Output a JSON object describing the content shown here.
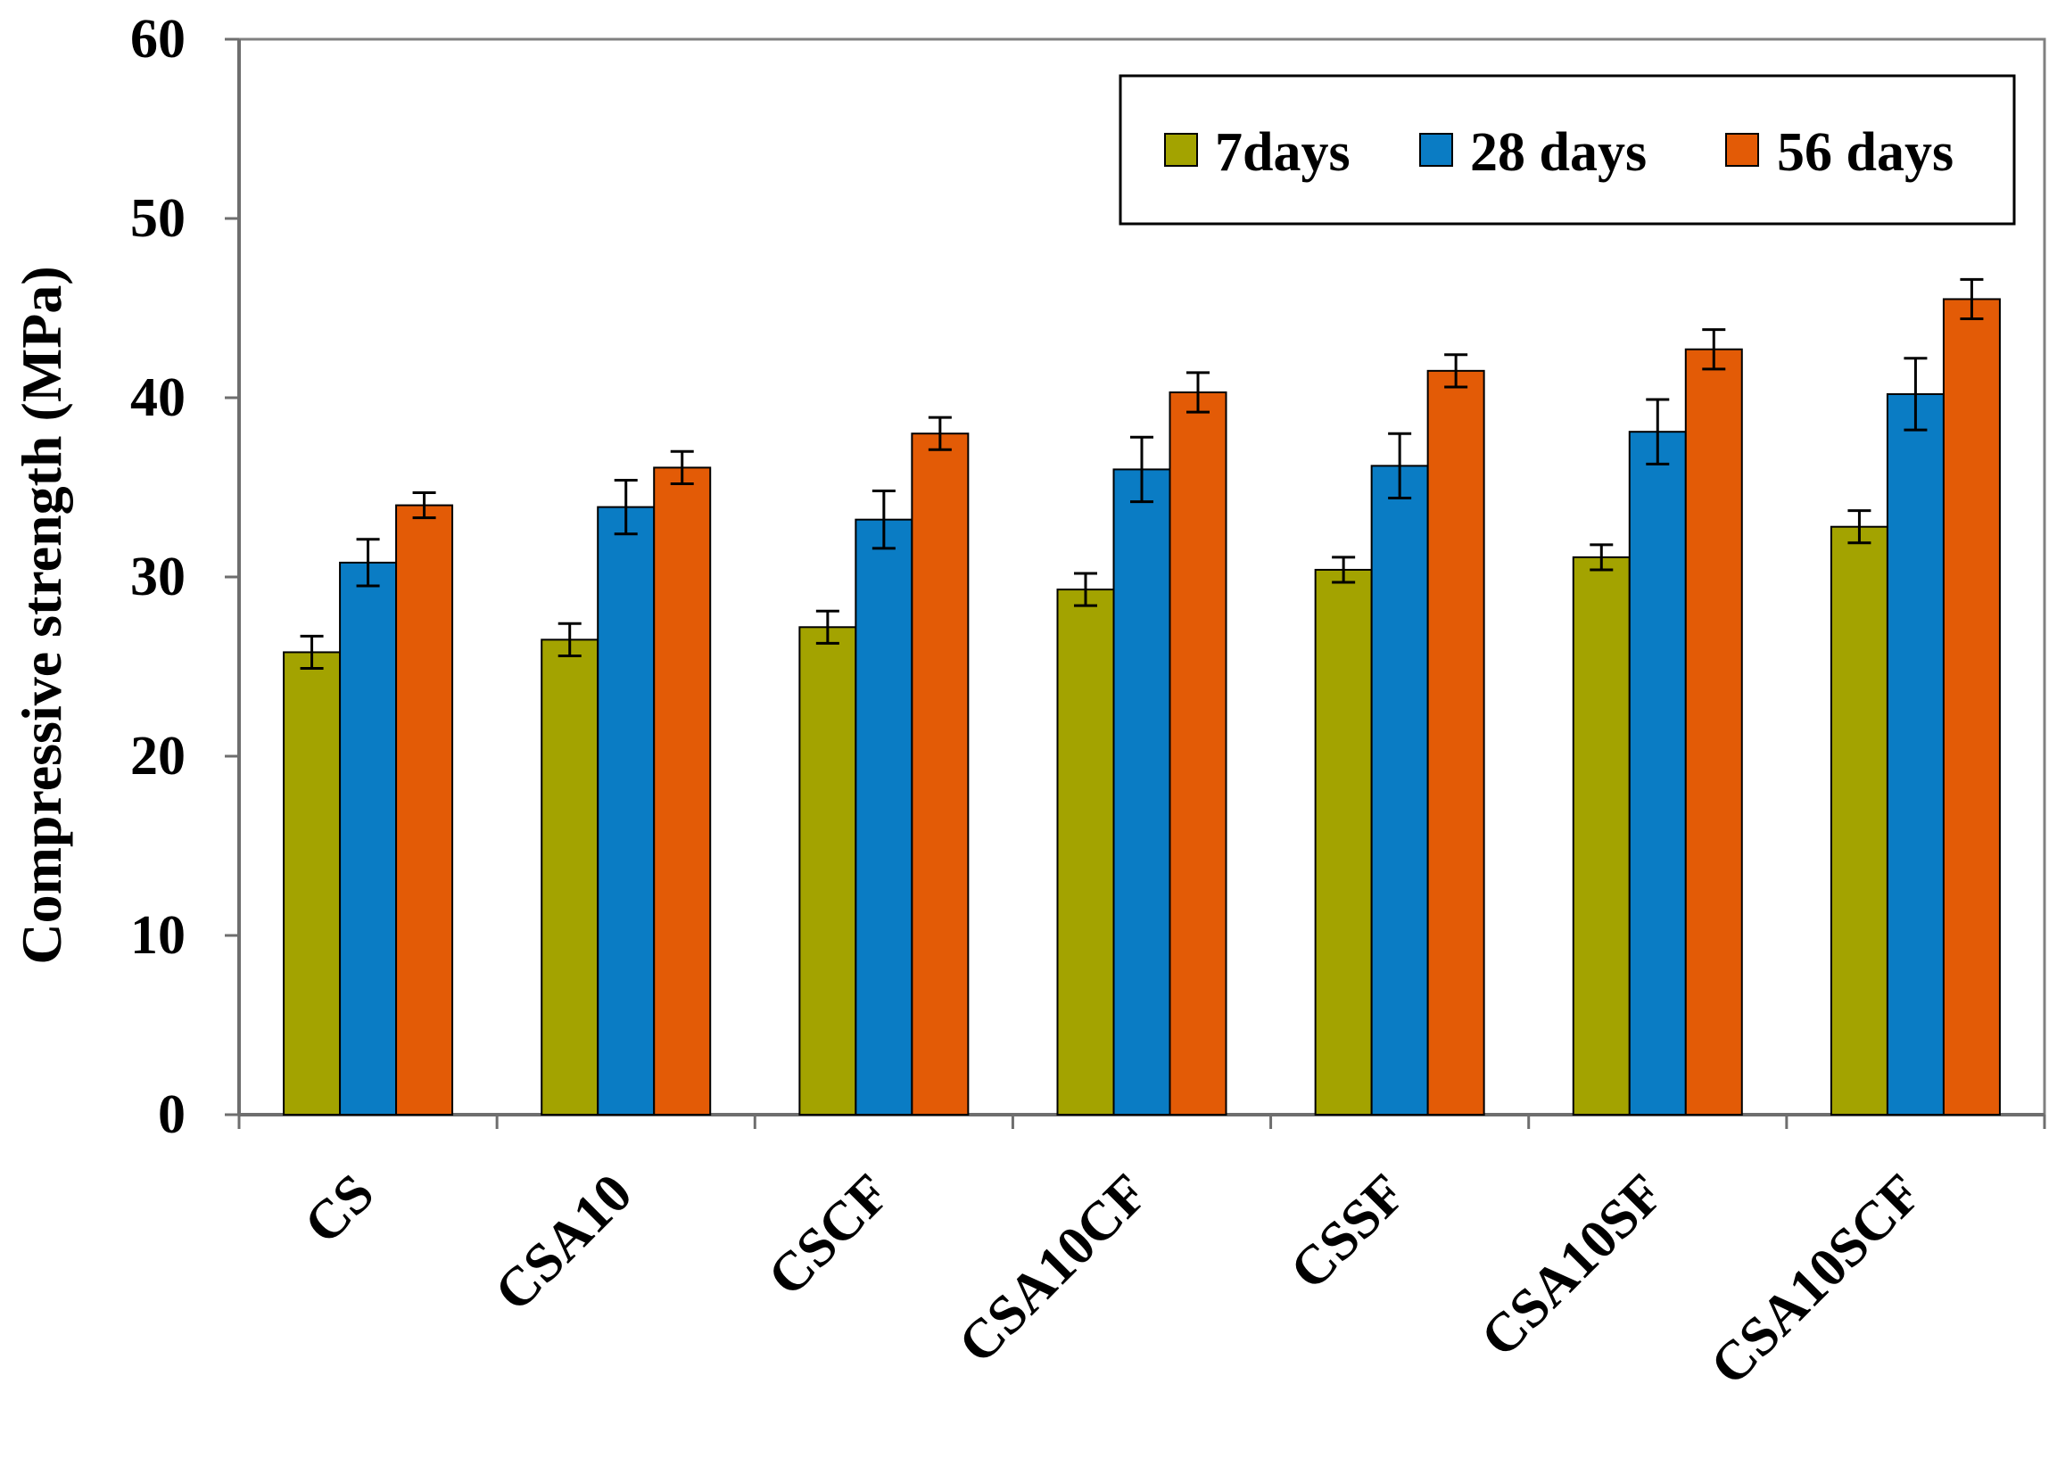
{
  "chart_data": {
    "type": "bar",
    "title": "",
    "xlabel": "",
    "ylabel": "Compressive strength (MPa)",
    "ylim": [
      0,
      60
    ],
    "yticks": [
      "0",
      "10",
      "20",
      "30",
      "40",
      "50",
      "60"
    ],
    "grid": false,
    "legend_position": "top-right",
    "categories": [
      "CS",
      "CSA10",
      "CSCF",
      "CSA10CF",
      "CSSF",
      "CSA10SF",
      "CSA10SCF"
    ],
    "series": [
      {
        "name": "7days",
        "color": "#a3a300",
        "values": [
          25.8,
          26.5,
          27.2,
          29.3,
          30.4,
          31.1,
          32.8
        ],
        "errors": [
          0.9,
          0.9,
          0.9,
          0.9,
          0.7,
          0.7,
          0.9
        ]
      },
      {
        "name": "28 days",
        "color": "#0a7cc4",
        "values": [
          30.8,
          33.9,
          33.2,
          36.0,
          36.2,
          38.1,
          40.2
        ],
        "errors": [
          1.3,
          1.5,
          1.6,
          1.8,
          1.8,
          1.8,
          2.0
        ]
      },
      {
        "name": "56 days",
        "color": "#e35b06",
        "values": [
          34.0,
          36.1,
          38.0,
          40.3,
          41.5,
          42.7,
          45.5
        ],
        "errors": [
          0.7,
          0.9,
          0.9,
          1.1,
          0.9,
          1.1,
          1.1
        ]
      }
    ]
  }
}
